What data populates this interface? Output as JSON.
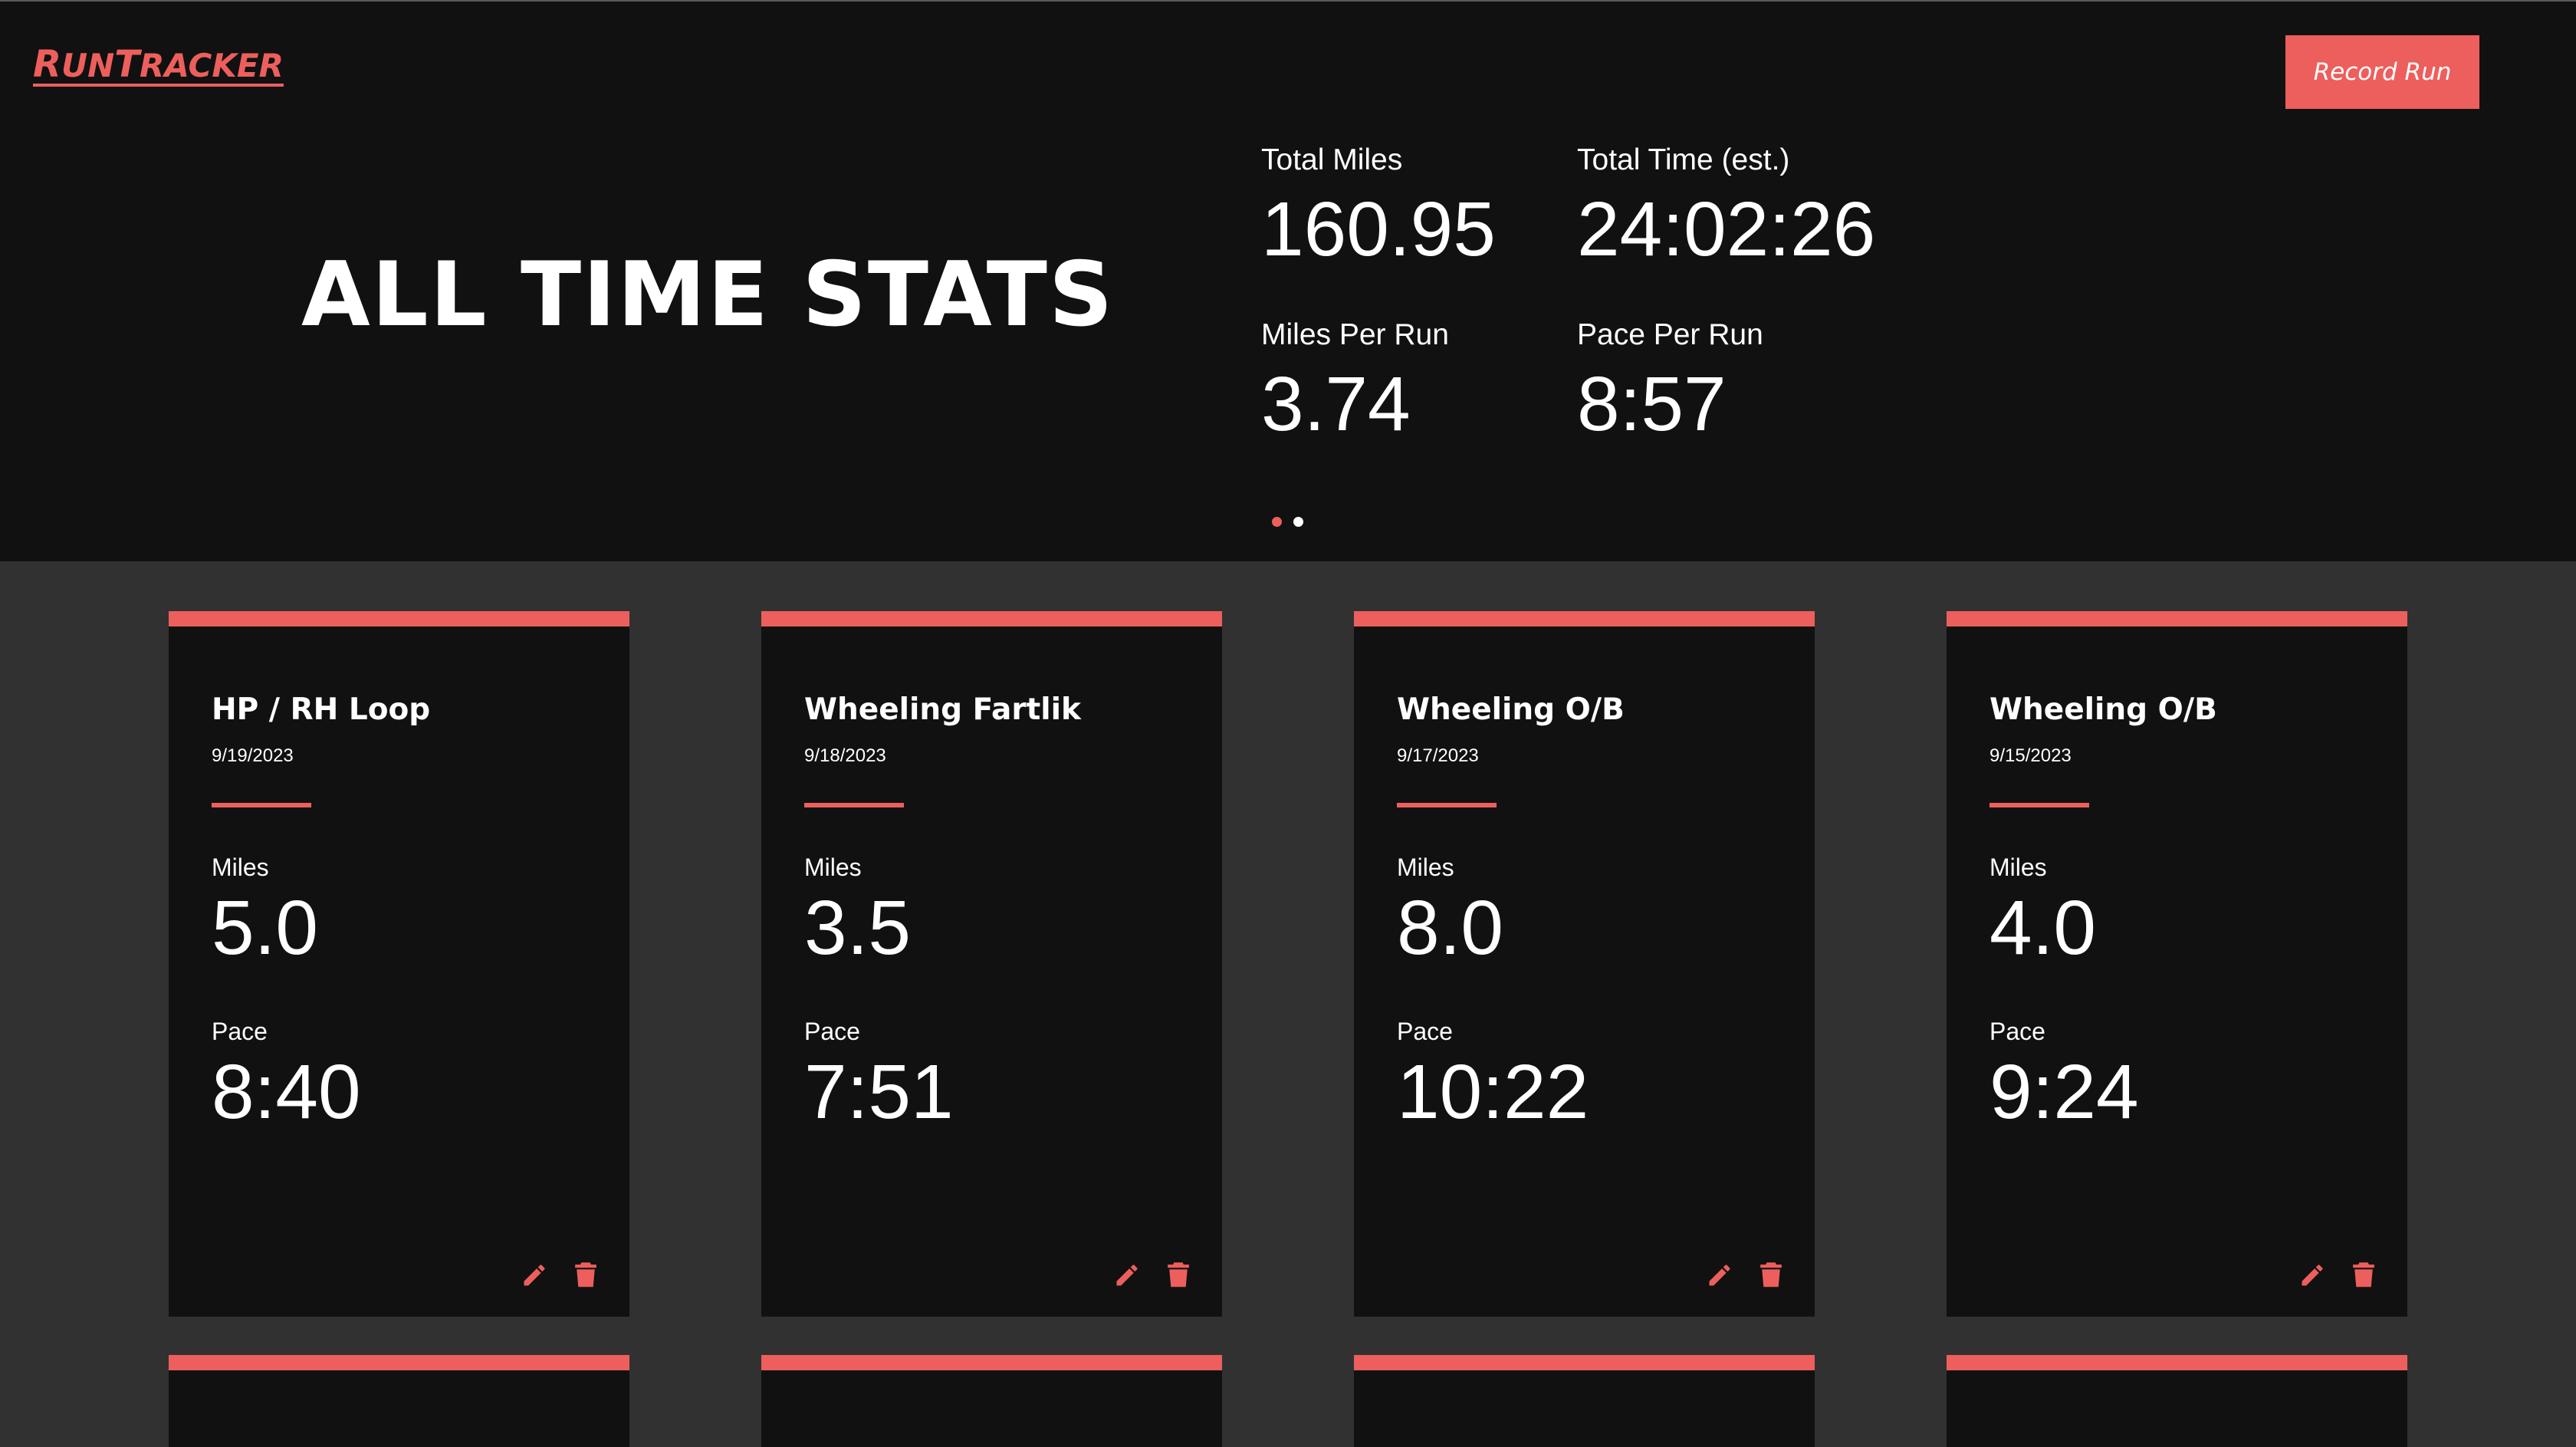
{
  "app": {
    "logo_text": "RunTracker",
    "logo_first": "R",
    "logo_rest": "un",
    "logo_mid": "T",
    "logo_end": "racker"
  },
  "header": {
    "record_button_label": "Record Run"
  },
  "hero": {
    "title": "ALL TIME STATS",
    "stats": [
      {
        "label": "Total Miles",
        "value": "160.95"
      },
      {
        "label": "Total Time (est.)",
        "value": "24:02:26"
      },
      {
        "label": "Miles Per Run",
        "value": "3.74"
      },
      {
        "label": "Pace Per Run",
        "value": "8:57"
      }
    ],
    "carousel": {
      "page": 1,
      "pages": 2
    }
  },
  "runs": [
    {
      "name": "HP / RH Loop",
      "date": "9/19/2023",
      "miles_label": "Miles",
      "miles": "5.0",
      "pace_label": "Pace",
      "pace": "8:40"
    },
    {
      "name": "Wheeling Fartlik",
      "date": "9/18/2023",
      "miles_label": "Miles",
      "miles": "3.5",
      "pace_label": "Pace",
      "pace": "7:51"
    },
    {
      "name": "Wheeling O/B",
      "date": "9/17/2023",
      "miles_label": "Miles",
      "miles": "8.0",
      "pace_label": "Pace",
      "pace": "10:22"
    },
    {
      "name": "Wheeling O/B",
      "date": "9/15/2023",
      "miles_label": "Miles",
      "miles": "4.0",
      "pace_label": "Pace",
      "pace": "9:24"
    }
  ],
  "icons": {
    "edit": "pencil-icon",
    "delete": "trash-icon"
  },
  "colors": {
    "accent": "#ed5f5c",
    "hero_bg": "#111111",
    "page_bg": "#313131",
    "text": "#ffffff"
  }
}
